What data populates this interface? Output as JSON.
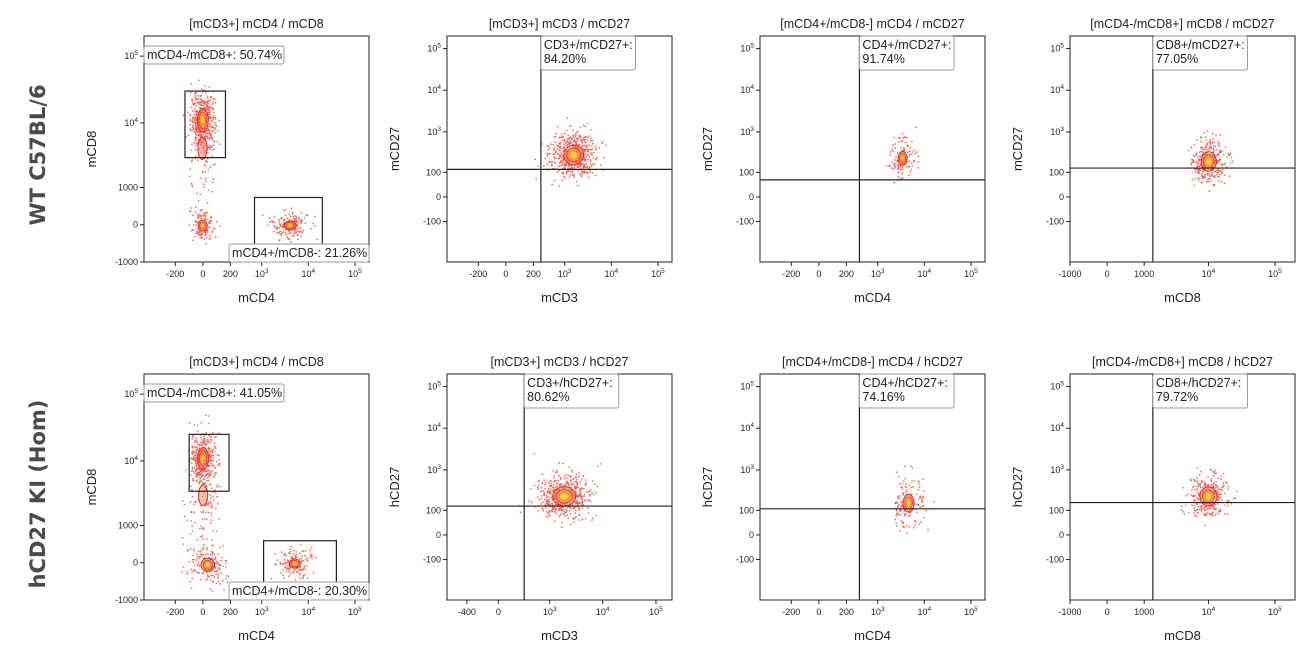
{
  "row_labels": [
    "WT C57BL/6",
    "hCD27 KI (Hom)"
  ],
  "chart_data": [
    {
      "type": "scatter",
      "row": 0,
      "col": 0,
      "title": "[mCD3+] mCD4 / mCD8",
      "xlabel": "mCD4",
      "ylabel": "mCD8",
      "x_ticks": [
        "-200",
        "0",
        "200",
        "10^3",
        "10^4",
        "10^5"
      ],
      "y_ticks": [
        "-1000",
        "0",
        "1000",
        "10^4",
        "10^5"
      ],
      "gates": [
        {
          "label": "mCD4-/mCD8+: 50.74%",
          "x": [
            -110,
            150
          ],
          "y": [
            3000,
            30000
          ],
          "label_anchor": "top-left"
        },
        {
          "label": "mCD4+/mCD8-: 21.26%",
          "x": [
            700,
            20000
          ],
          "y": [
            -500,
            650
          ],
          "label_anchor": "bottom-right"
        }
      ],
      "populations": [
        {
          "x": 0,
          "y": 11000,
          "n": 420,
          "sx": 35,
          "sy": 0.2,
          "density": "high"
        },
        {
          "x": 4000,
          "y": 0,
          "n": 170,
          "sx": 0.2,
          "sy": 150,
          "density": "medium"
        },
        {
          "x": 0,
          "y": 0,
          "n": 110,
          "sx": 40,
          "sy": 200,
          "density": "medium"
        },
        {
          "x": 0,
          "y": 3000,
          "n": 90,
          "sx": 40,
          "sy": 0.45,
          "density": "low"
        }
      ]
    },
    {
      "type": "scatter",
      "row": 0,
      "col": 1,
      "title": "[mCD3+] mCD3 / mCD27",
      "xlabel": "mCD3",
      "ylabel": "mCD27",
      "x_ticks": [
        "-200",
        "0",
        "200",
        "10^3",
        "10^4",
        "10^5"
      ],
      "y_ticks": [
        "-100",
        "0",
        "100",
        "10^3",
        "10^4",
        "10^5"
      ],
      "quadrant": {
        "x": 300,
        "y": 120,
        "label": "CD3+/mCD27+:\n84.20%"
      },
      "populations": [
        {
          "x": 1500,
          "y": 280,
          "n": 560,
          "sx": 0.25,
          "sy": 0.28,
          "density": "high"
        }
      ]
    },
    {
      "type": "scatter",
      "row": 0,
      "col": 2,
      "title": "[mCD4+/mCD8-] mCD4 / mCD27",
      "xlabel": "mCD4",
      "ylabel": "mCD27",
      "x_ticks": [
        "-200",
        "0",
        "200",
        "10^3",
        "10^4",
        "10^5"
      ],
      "y_ticks": [
        "-100",
        "0",
        "100",
        "10^3",
        "10^4",
        "10^5"
      ],
      "quadrant": {
        "x": 400,
        "y": 60,
        "label": "CD4+/mCD27+:\n91.74%"
      },
      "populations": [
        {
          "x": 3500,
          "y": 220,
          "n": 130,
          "sx": 0.15,
          "sy": 0.3,
          "density": "medium"
        }
      ]
    },
    {
      "type": "scatter",
      "row": 0,
      "col": 3,
      "title": "[mCD4-/mCD8+] mCD8 / mCD27",
      "xlabel": "mCD8",
      "ylabel": "mCD27",
      "x_ticks": [
        "-1000",
        "0",
        "1000",
        "10^4",
        "10^5"
      ],
      "y_ticks": [
        "-100",
        "0",
        "100",
        "10^3",
        "10^4",
        "10^5"
      ],
      "quadrant": {
        "x": 1400,
        "y": 130,
        "label": "CD8+/mCD27+:\n77.05%"
      },
      "populations": [
        {
          "x": 10000,
          "y": 180,
          "n": 320,
          "sx": 0.13,
          "sy": 0.3,
          "density": "high"
        }
      ]
    },
    {
      "type": "scatter",
      "row": 1,
      "col": 0,
      "title": "[mCD3+] mCD4 / mCD8",
      "xlabel": "mCD4",
      "ylabel": "mCD8",
      "x_ticks": [
        "-200",
        "0",
        "200",
        "10^3",
        "10^4",
        "10^5"
      ],
      "y_ticks": [
        "-1000",
        "0",
        "1000",
        "10^4",
        "10^5"
      ],
      "gates": [
        {
          "label": "mCD4-/mCD8+: 41.05%",
          "x": [
            -80,
            185
          ],
          "y": [
            3500,
            25000
          ],
          "label_anchor": "top-left"
        },
        {
          "label": "mCD4+/mCD8-: 20.30%",
          "x": [
            1100,
            40000
          ],
          "y": [
            -450,
            500
          ],
          "label_anchor": "bottom-right"
        }
      ],
      "populations": [
        {
          "x": 0,
          "y": 11000,
          "n": 380,
          "sx": 35,
          "sy": 0.2,
          "density": "high"
        },
        {
          "x": 5000,
          "y": 0,
          "n": 150,
          "sx": 0.2,
          "sy": 150,
          "density": "medium"
        },
        {
          "x": 20,
          "y": -60,
          "n": 160,
          "sx": 60,
          "sy": 250,
          "density": "medium"
        },
        {
          "x": 0,
          "y": 3000,
          "n": 130,
          "sx": 45,
          "sy": 0.45,
          "density": "low"
        }
      ]
    },
    {
      "type": "scatter",
      "row": 1,
      "col": 1,
      "title": "[mCD3+] mCD3 / hCD27",
      "xlabel": "mCD3",
      "ylabel": "hCD27",
      "x_ticks": [
        "-400",
        "0",
        "10^3",
        "10^4",
        "10^5"
      ],
      "y_ticks": [
        "-100",
        "0",
        "100",
        "10^3",
        "10^4",
        "10^5"
      ],
      "quadrant": {
        "x": 300,
        "y": 130,
        "label": "CD3+/hCD27+:\n80.62%"
      },
      "populations": [
        {
          "x": 1800,
          "y": 240,
          "n": 520,
          "sx": 0.25,
          "sy": 0.28,
          "density": "high"
        }
      ]
    },
    {
      "type": "scatter",
      "row": 1,
      "col": 2,
      "title": "[mCD4+/mCD8-] mCD4 / hCD27",
      "xlabel": "mCD4",
      "ylabel": "hCD27",
      "x_ticks": [
        "-200",
        "0",
        "200",
        "10^3",
        "10^4",
        "10^5"
      ],
      "y_ticks": [
        "-100",
        "0",
        "100",
        "10^3",
        "10^4",
        "10^5"
      ],
      "quadrant": {
        "x": 400,
        "y": 110,
        "label": "CD4+/hCD27+:\n74.16%"
      },
      "populations": [
        {
          "x": 4500,
          "y": 150,
          "n": 140,
          "sx": 0.17,
          "sy": 0.35,
          "density": "medium"
        }
      ]
    },
    {
      "type": "scatter",
      "row": 1,
      "col": 3,
      "title": "[mCD4-/mCD8+] mCD8 / hCD27",
      "xlabel": "mCD8",
      "ylabel": "hCD27",
      "x_ticks": [
        "-1000",
        "0",
        "1000",
        "10^4",
        "10^5"
      ],
      "y_ticks": [
        "-100",
        "0",
        "100",
        "10^3",
        "10^4",
        "10^5"
      ],
      "quadrant": {
        "x": 1400,
        "y": 160,
        "label": "CD8+/hCD27+:\n79.72%"
      },
      "populations": [
        {
          "x": 10000,
          "y": 220,
          "n": 300,
          "sx": 0.15,
          "sy": 0.28,
          "density": "high"
        }
      ]
    }
  ]
}
